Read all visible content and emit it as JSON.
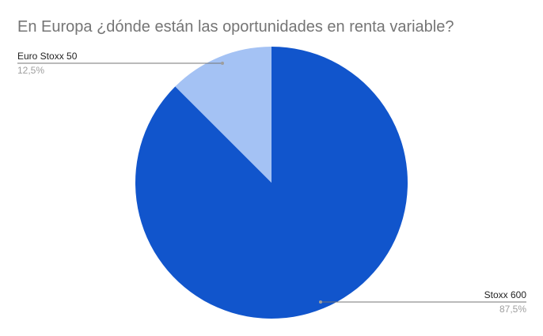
{
  "chart_data": {
    "type": "pie",
    "title": "En Europa ¿dónde están las oportunidades en renta variable?",
    "slices": [
      {
        "label": "Stoxx 600",
        "value": 87.5,
        "display": "87,5%",
        "color": "#1155cc"
      },
      {
        "label": "Euro Stoxx 50",
        "value": 12.5,
        "display": "12,5%",
        "color": "#a4c2f4"
      }
    ],
    "start_angle": "top",
    "direction": "clockwise",
    "legend": "labeled callouts"
  }
}
